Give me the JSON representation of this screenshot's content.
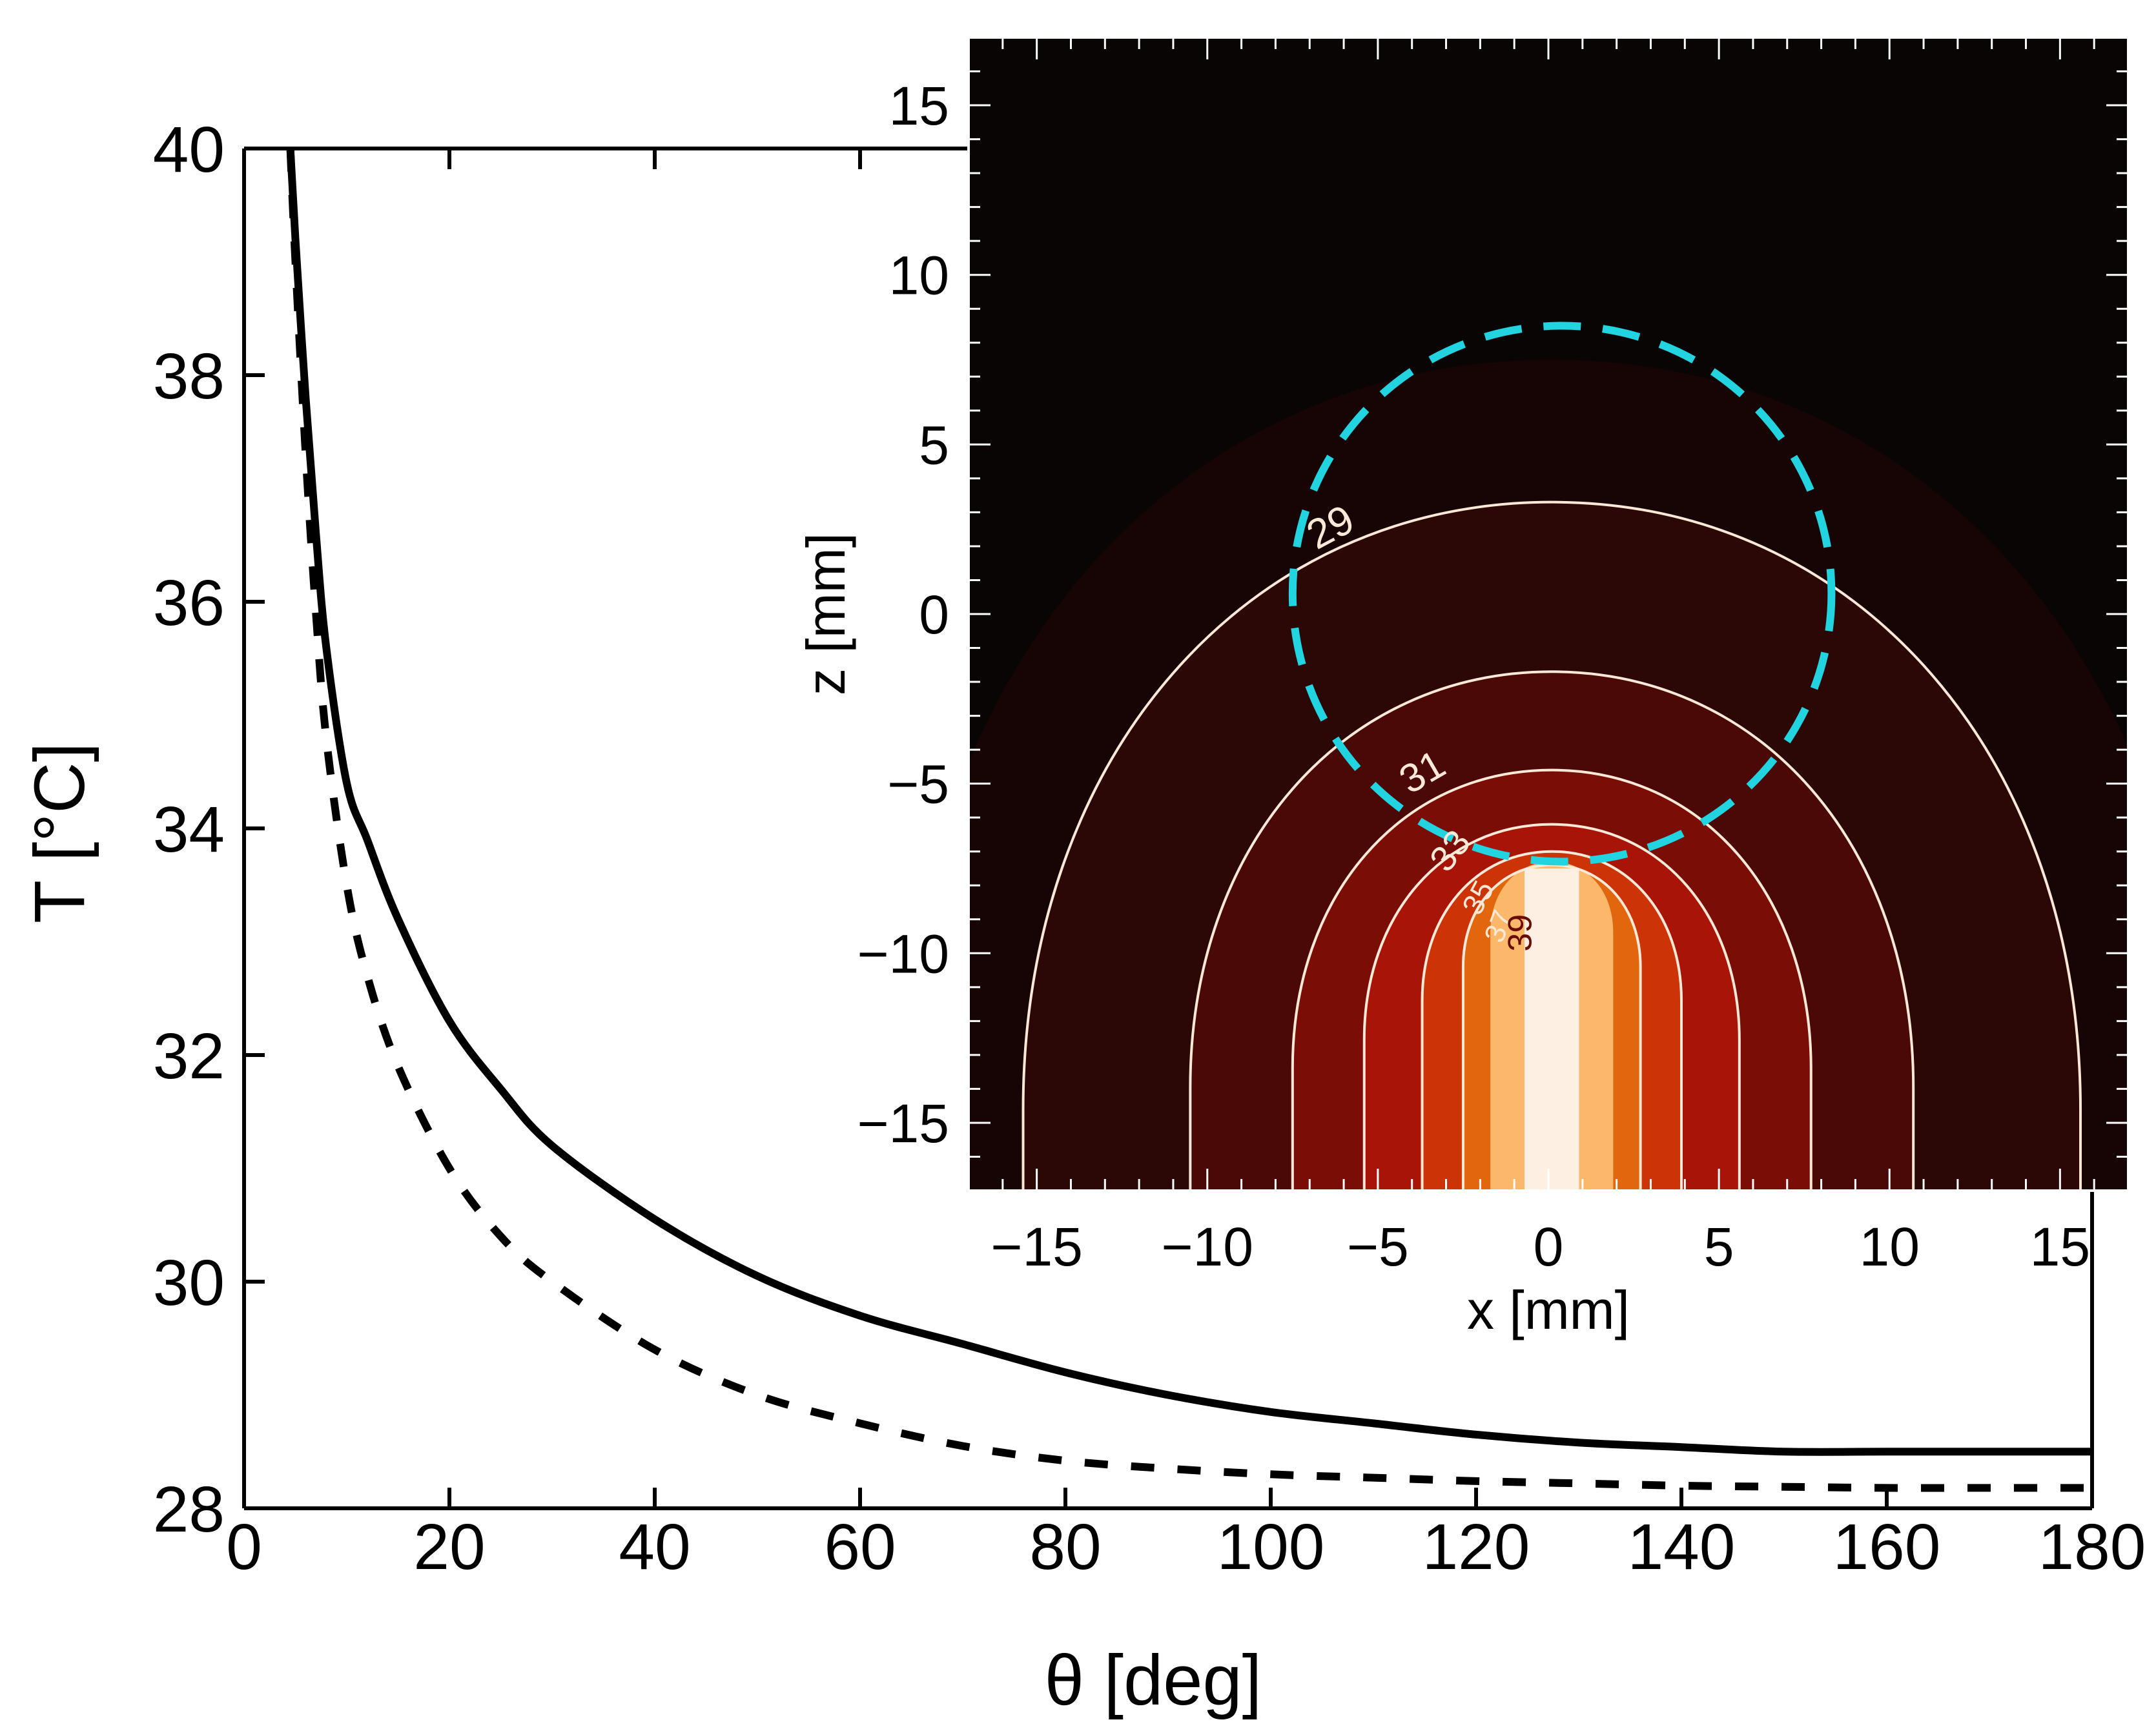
{
  "chart_data": [
    {
      "type": "line",
      "title": "",
      "xlabel": "θ [deg]",
      "ylabel": "T [°C]",
      "xlim": [
        0,
        180
      ],
      "ylim": [
        28,
        40
      ],
      "xticks": [
        "0",
        "20",
        "40",
        "60",
        "80",
        "100",
        "120",
        "140",
        "160",
        "180"
      ],
      "yticks": [
        "28",
        "30",
        "32",
        "34",
        "36",
        "38",
        "40"
      ],
      "grid": false,
      "series": [
        {
          "style": "solid",
          "color": "#000000",
          "x": [
            4.5,
            5,
            6,
            7,
            8,
            10,
            12,
            15,
            20,
            25,
            30,
            40,
            50,
            60,
            70,
            80,
            90,
            100,
            110,
            120,
            130,
            140,
            150,
            160,
            170,
            180
          ],
          "y": [
            40,
            39.2,
            37.8,
            36.6,
            35.6,
            34.4,
            33.9,
            33.2,
            32.3,
            31.7,
            31.2,
            30.55,
            30.05,
            29.7,
            29.45,
            29.2,
            29.0,
            28.85,
            28.75,
            28.65,
            28.58,
            28.54,
            28.5,
            28.5,
            28.5,
            28.5
          ]
        },
        {
          "style": "dashed",
          "color": "#000000",
          "x": [
            4.5,
            5,
            6,
            7,
            8,
            10,
            12,
            15,
            20,
            25,
            30,
            40,
            50,
            60,
            70,
            80,
            90,
            100,
            110,
            120,
            130,
            140,
            150,
            160,
            170,
            180
          ],
          "y": [
            40,
            39.0,
            37.3,
            35.9,
            34.8,
            33.5,
            32.7,
            31.9,
            31.0,
            30.4,
            30.0,
            29.4,
            29.0,
            28.75,
            28.55,
            28.42,
            28.35,
            28.3,
            28.27,
            28.24,
            28.22,
            28.2,
            28.19,
            28.18,
            28.18,
            28.18
          ]
        }
      ]
    },
    {
      "type": "heatmap",
      "title": "",
      "xlabel": "x [mm]",
      "ylabel": "z [mm]",
      "xlim": [
        -17,
        17
      ],
      "ylim": [
        -17,
        17
      ],
      "xticks": [
        "−15",
        "−10",
        "−5",
        "0",
        "5",
        "10",
        "15"
      ],
      "yticks": [
        "−15",
        "−10",
        "−5",
        "0",
        "5",
        "10",
        "15"
      ],
      "contours": [
        {
          "level": 29,
          "label": "29",
          "half_width": 15.5,
          "top_z": 3.3
        },
        {
          "level": 31,
          "label": "31",
          "half_width": 10.6,
          "top_z": -1.7
        },
        {
          "level": 33,
          "label": "33",
          "half_width": 7.6,
          "top_z": -4.6
        },
        {
          "level": 35,
          "label": "35",
          "half_width": 5.5,
          "top_z": -6.2
        },
        {
          "level": 37,
          "label": "37",
          "half_width": 3.8,
          "top_z": -7.0
        },
        {
          "level": 39,
          "label": "39",
          "half_width": 2.6,
          "top_z": -7.4
        }
      ],
      "probe": {
        "x_min": -0.7,
        "x_max": 0.9,
        "z_top": -7.5,
        "color": "#fdf0e2"
      },
      "dashed_circle": {
        "center_x": 0.4,
        "center_z": 0.6,
        "radius": 7.9,
        "color": "#22d3e0"
      },
      "colors": {
        "background": "#0a0505",
        "hot": "#fbb86a",
        "contour_line": "#fbe8d6"
      }
    }
  ]
}
